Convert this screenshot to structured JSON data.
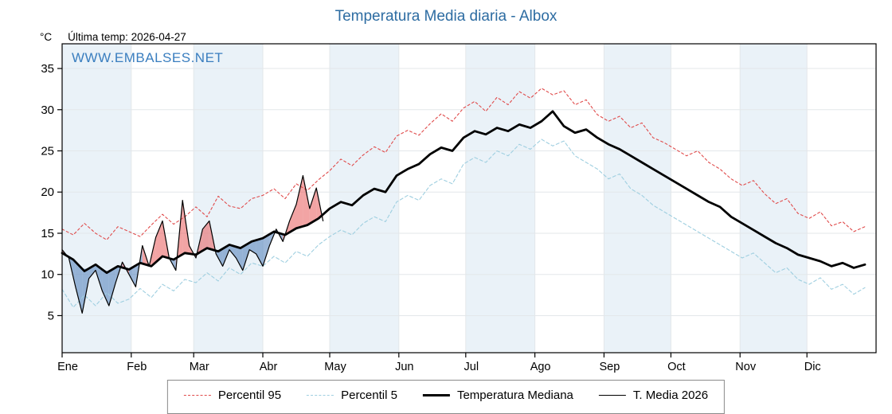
{
  "title": "Temperatura Media diaria - Albox",
  "unit": "°C",
  "last_temp": "Última temp: 2026-04-27",
  "watermark": "WWW.EMBALSES.NET",
  "colors": {
    "title": "#2d6ca2",
    "watermark": "#3a7ebf",
    "band": "#eaf2f8",
    "grid": "#e3e7ea",
    "axis": "#000000",
    "percentil95": "#e04b4b",
    "percentil5": "#9fcfe0",
    "mediana": "#000000",
    "media2026": "#000000",
    "fill_above": "rgba(232,90,90,0.55)",
    "fill_below": "rgba(90,135,190,0.6)"
  },
  "chart_data": {
    "type": "line",
    "title": "Temperatura Media diaria - Albox",
    "xlabel": "",
    "ylabel": "°C",
    "x_domain": [
      0,
      365
    ],
    "y_domain": [
      0.5,
      38
    ],
    "yticks": [
      5,
      10,
      15,
      20,
      25,
      30,
      35
    ],
    "grid": true,
    "legend_position": "bottom",
    "months": [
      {
        "label": "Ene",
        "start": 0
      },
      {
        "label": "Feb",
        "start": 31
      },
      {
        "label": "Mar",
        "start": 59
      },
      {
        "label": "Abr",
        "start": 90
      },
      {
        "label": "May",
        "start": 120
      },
      {
        "label": "Jun",
        "start": 151
      },
      {
        "label": "Jul",
        "start": 181
      },
      {
        "label": "Ago",
        "start": 212
      },
      {
        "label": "Sep",
        "start": 243
      },
      {
        "label": "Oct",
        "start": 273
      },
      {
        "label": "Nov",
        "start": 304
      },
      {
        "label": "Dic",
        "start": 334
      }
    ],
    "series": [
      {
        "name": "Percentil 95",
        "style": "dashed",
        "color": "#e04b4b",
        "width": 1.1,
        "dash": "3,3",
        "x_start": 0,
        "x_step": 5,
        "values": [
          15.5,
          14.8,
          16.2,
          15.0,
          14.2,
          15.8,
          15.2,
          14.6,
          16.0,
          17.3,
          16.1,
          17.0,
          18.2,
          17.0,
          19.5,
          18.3,
          18.0,
          19.2,
          19.6,
          20.4,
          19.2,
          21.0,
          20.2,
          21.5,
          22.6,
          24.0,
          23.2,
          24.5,
          25.5,
          24.8,
          26.8,
          27.5,
          26.9,
          28.3,
          29.5,
          28.6,
          30.2,
          31.0,
          29.8,
          31.5,
          30.6,
          32.2,
          31.4,
          32.6,
          31.8,
          32.3,
          30.6,
          31.2,
          29.4,
          28.6,
          29.2,
          27.8,
          28.4,
          26.6,
          26.0,
          25.2,
          24.4,
          25.0,
          23.6,
          22.8,
          21.6,
          20.8,
          21.4,
          19.8,
          18.6,
          19.2,
          17.4,
          16.8,
          17.6,
          15.9,
          16.4,
          15.2,
          15.8
        ]
      },
      {
        "name": "Percentil 5",
        "style": "dashed",
        "color": "#9fcfe0",
        "width": 1.1,
        "dash": "4,3",
        "x_start": 0,
        "x_step": 5,
        "values": [
          8.2,
          6.0,
          7.5,
          6.2,
          7.8,
          6.5,
          7.0,
          8.3,
          7.2,
          8.8,
          8.0,
          9.4,
          9.0,
          10.2,
          9.2,
          10.8,
          10.0,
          11.4,
          11.0,
          12.2,
          11.4,
          12.8,
          12.2,
          13.6,
          14.6,
          15.4,
          14.8,
          16.2,
          17.0,
          16.4,
          18.8,
          19.6,
          19.0,
          20.8,
          21.6,
          21.0,
          23.4,
          24.2,
          23.6,
          25.0,
          24.4,
          25.8,
          25.2,
          26.4,
          25.6,
          26.2,
          24.4,
          23.6,
          22.8,
          21.6,
          22.2,
          20.4,
          19.6,
          18.4,
          17.6,
          16.8,
          16.0,
          15.2,
          14.4,
          13.6,
          12.8,
          12.0,
          12.6,
          11.4,
          10.2,
          10.8,
          9.4,
          8.8,
          9.6,
          8.2,
          8.8,
          7.6,
          8.4
        ]
      },
      {
        "name": "Temperatura Mediana",
        "style": "solid",
        "color": "#000000",
        "width": 2.8,
        "dash": "",
        "x_start": 0,
        "x_step": 5,
        "values": [
          12.6,
          11.8,
          10.4,
          11.2,
          10.2,
          11.0,
          10.6,
          11.4,
          11.0,
          12.2,
          11.8,
          12.6,
          12.4,
          13.2,
          12.8,
          13.6,
          13.2,
          14.0,
          14.4,
          15.2,
          14.8,
          15.6,
          16.0,
          16.8,
          18.0,
          18.8,
          18.4,
          19.6,
          20.4,
          20.0,
          22.0,
          22.8,
          23.4,
          24.6,
          25.4,
          25.0,
          26.6,
          27.4,
          27.0,
          27.8,
          27.4,
          28.2,
          27.8,
          28.6,
          29.8,
          28.0,
          27.2,
          27.6,
          26.6,
          25.8,
          25.2,
          24.4,
          23.6,
          22.8,
          22.0,
          21.2,
          20.4,
          19.6,
          18.8,
          18.2,
          17.0,
          16.2,
          15.4,
          14.6,
          13.8,
          13.2,
          12.4,
          12.0,
          11.6,
          11.0,
          11.4,
          10.8,
          11.2
        ]
      },
      {
        "name": "T. Media 2026",
        "style": "solid",
        "color": "#000000",
        "width": 1.2,
        "dash": "",
        "x_start": 0,
        "x_step": 3,
        "values": [
          13.0,
          12.0,
          8.5,
          5.3,
          9.5,
          10.5,
          8.0,
          6.2,
          9.0,
          11.5,
          10.0,
          8.5,
          13.5,
          11.0,
          14.5,
          16.5,
          12.0,
          10.5,
          19.0,
          13.5,
          12.0,
          15.5,
          16.5,
          12.5,
          11.0,
          13.0,
          12.0,
          10.5,
          13.0,
          12.5,
          11.0,
          13.5,
          15.5,
          14.0,
          16.5,
          18.5,
          22.0,
          18.0,
          20.5,
          16.5
        ]
      }
    ],
    "fill": {
      "between": [
        "T. Media 2026",
        "Temperatura Mediana"
      ],
      "above_color": "rgba(232,90,90,0.55)",
      "below_color": "rgba(90,135,190,0.6)"
    }
  }
}
